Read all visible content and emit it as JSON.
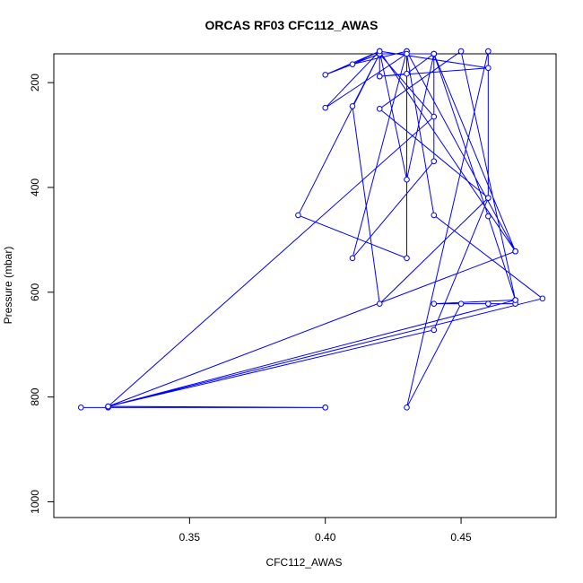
{
  "chart_data": {
    "type": "line",
    "title": "ORCAS RF03 CFC112_AWAS",
    "xlabel": "CFC112_AWAS",
    "ylabel": "Pressure (mbar)",
    "xlim": [
      0.3,
      0.485
    ],
    "ylim": [
      1030,
      145
    ],
    "y_reversed": true,
    "x_ticks": [
      0.35,
      0.4,
      0.45
    ],
    "x_tick_labels": [
      "0.35",
      "0.40",
      "0.45"
    ],
    "y_ticks": [
      200,
      400,
      600,
      800,
      1000
    ],
    "y_tick_labels": [
      "200",
      "400",
      "600",
      "800",
      "1000"
    ],
    "grid": false,
    "series": [
      {
        "color": "#0000ff",
        "points": [
          [
            0.31,
            820
          ],
          [
            0.32,
            820
          ],
          [
            0.4,
            820
          ],
          [
            0.4,
            820
          ],
          [
            0.32,
            818
          ],
          [
            0.44,
            265
          ],
          [
            0.42,
            145
          ],
          [
            0.4,
            185
          ],
          [
            0.42,
            140
          ],
          [
            0.41,
            165
          ],
          [
            0.43,
            140
          ],
          [
            0.43,
            535
          ],
          [
            0.39,
            453
          ],
          [
            0.42,
            145
          ],
          [
            0.42,
            188
          ],
          [
            0.43,
            183
          ],
          [
            0.44,
            145
          ],
          [
            0.44,
            350
          ],
          [
            0.41,
            535
          ],
          [
            0.43,
            140
          ],
          [
            0.47,
            522
          ],
          [
            0.42,
            140
          ],
          [
            0.4,
            248
          ],
          [
            0.43,
            145
          ],
          [
            0.44,
            453
          ],
          [
            0.48,
            612
          ],
          [
            0.32,
            818
          ],
          [
            0.47,
            615
          ],
          [
            0.44,
            622
          ],
          [
            0.47,
            622
          ],
          [
            0.46,
            622
          ],
          [
            0.45,
            622
          ],
          [
            0.43,
            820
          ],
          [
            0.46,
            140
          ],
          [
            0.46,
            420
          ],
          [
            0.44,
            672
          ],
          [
            0.32,
            818
          ],
          [
            0.47,
            522
          ],
          [
            0.44,
            145
          ],
          [
            0.46,
            455
          ],
          [
            0.47,
            615
          ],
          [
            0.45,
            140
          ],
          [
            0.42,
            250
          ],
          [
            0.46,
            420
          ],
          [
            0.42,
            622
          ],
          [
            0.41,
            245
          ],
          [
            0.42,
            145
          ],
          [
            0.44,
            145
          ],
          [
            0.43,
            385
          ],
          [
            0.42,
            140
          ],
          [
            0.46,
            172
          ],
          [
            0.42,
            188
          ]
        ]
      }
    ]
  }
}
